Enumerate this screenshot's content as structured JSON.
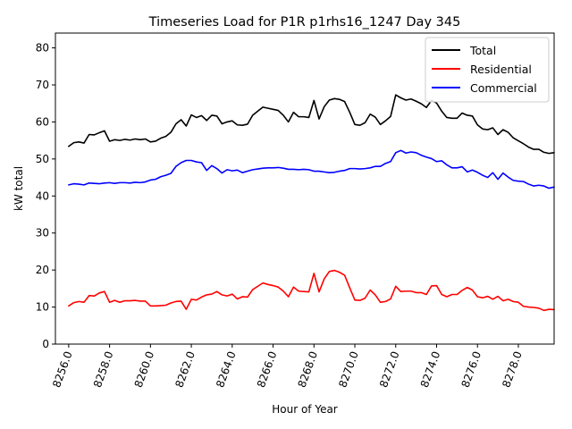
{
  "chart_data": {
    "type": "line",
    "title": "Timeseries Load for P1R p1rhs16_1247  Day 345",
    "xlabel": "Hour of Year",
    "ylabel": "kW total",
    "xlim": [
      8255.35,
      8279.75
    ],
    "ylim": [
      0,
      84
    ],
    "x_start": 8256.0,
    "x_step": 0.25,
    "xticks": [
      8256.0,
      8258.0,
      8260.0,
      8262.0,
      8264.0,
      8266.0,
      8268.0,
      8270.0,
      8272.0,
      8274.0,
      8276.0,
      8278.0
    ],
    "xtick_labels": [
      "8256.0",
      "8258.0",
      "8260.0",
      "8262.0",
      "8264.0",
      "8266.0",
      "8268.0",
      "8270.0",
      "8272.0",
      "8274.0",
      "8276.0",
      "8278.0"
    ],
    "yticks": [
      0,
      10,
      20,
      30,
      40,
      50,
      60,
      70,
      80
    ],
    "ytick_labels": [
      "0",
      "10",
      "20",
      "30",
      "40",
      "50",
      "60",
      "70",
      "80"
    ],
    "legend_position": "top-right",
    "series": [
      {
        "name": "Total",
        "color": "#000000",
        "values": [
          53.4,
          54.4,
          54.6,
          54.3,
          56.6,
          56.5,
          57.1,
          57.6,
          54.8,
          55.2,
          55.0,
          55.3,
          55.1,
          55.4,
          55.2,
          55.4,
          54.6,
          54.8,
          55.6,
          56.1,
          57.2,
          59.5,
          60.6,
          58.9,
          61.9,
          61.2,
          61.7,
          60.4,
          61.8,
          61.6,
          59.5,
          60.0,
          60.3,
          59.2,
          59.1,
          59.4,
          61.8,
          62.9,
          64.0,
          63.7,
          63.4,
          63.1,
          61.8,
          60.0,
          62.6,
          61.4,
          61.4,
          61.2,
          65.8,
          60.8,
          64.1,
          65.9,
          66.3,
          66.1,
          65.5,
          62.6,
          59.3,
          59.1,
          59.8,
          62.1,
          61.3,
          59.3,
          60.3,
          61.5,
          67.3,
          66.5,
          65.9,
          66.2,
          65.6,
          64.9,
          63.9,
          65.8,
          65.1,
          62.9,
          61.2,
          61.0,
          61.0,
          62.4,
          61.8,
          61.6,
          59.2,
          58.1,
          57.9,
          58.4,
          56.6,
          57.9,
          57.2,
          55.7,
          54.9,
          54.1,
          53.2,
          52.6,
          52.6,
          51.8,
          51.5,
          51.7
        ]
      },
      {
        "name": "Residential",
        "color": "#ff0000",
        "values": [
          10.3,
          11.2,
          11.5,
          11.3,
          13.1,
          13.0,
          13.8,
          14.2,
          11.3,
          11.8,
          11.3,
          11.7,
          11.7,
          11.8,
          11.6,
          11.6,
          10.3,
          10.3,
          10.4,
          10.5,
          11.1,
          11.5,
          11.6,
          9.4,
          12.1,
          11.9,
          12.7,
          13.3,
          13.5,
          14.2,
          13.3,
          13.0,
          13.5,
          12.2,
          12.8,
          12.7,
          14.7,
          15.6,
          16.5,
          16.1,
          15.8,
          15.4,
          14.3,
          12.8,
          15.4,
          14.3,
          14.2,
          14.1,
          19.1,
          14.1,
          17.6,
          19.6,
          19.9,
          19.4,
          18.6,
          15.2,
          11.9,
          11.8,
          12.4,
          14.6,
          13.3,
          11.3,
          11.5,
          12.2,
          15.6,
          14.2,
          14.3,
          14.3,
          13.9,
          13.9,
          13.4,
          15.7,
          15.8,
          13.4,
          12.8,
          13.4,
          13.4,
          14.5,
          15.3,
          14.6,
          12.8,
          12.5,
          12.9,
          12.1,
          12.9,
          11.7,
          12.1,
          11.5,
          11.3,
          10.2,
          10.0,
          9.9,
          9.7,
          9.1,
          9.4,
          9.3
        ]
      },
      {
        "name": "Commercial",
        "color": "#0000ff",
        "values": [
          43.0,
          43.3,
          43.2,
          43.0,
          43.5,
          43.4,
          43.3,
          43.5,
          43.6,
          43.4,
          43.6,
          43.6,
          43.5,
          43.7,
          43.6,
          43.8,
          44.3,
          44.5,
          45.2,
          45.6,
          46.1,
          48.0,
          49.0,
          49.6,
          49.6,
          49.2,
          49.0,
          46.9,
          48.2,
          47.4,
          46.2,
          47.1,
          46.8,
          47.0,
          46.3,
          46.7,
          47.1,
          47.3,
          47.5,
          47.6,
          47.6,
          47.7,
          47.5,
          47.2,
          47.2,
          47.1,
          47.2,
          47.1,
          46.7,
          46.7,
          46.5,
          46.3,
          46.4,
          46.7,
          46.9,
          47.4,
          47.4,
          47.3,
          47.4,
          47.6,
          48.0,
          48.0,
          48.8,
          49.3,
          51.7,
          52.3,
          51.6,
          51.9,
          51.7,
          51.0,
          50.5,
          50.1,
          49.3,
          49.5,
          48.4,
          47.6,
          47.6,
          47.9,
          46.5,
          47.0,
          46.4,
          45.6,
          45.0,
          46.3,
          44.5,
          46.2,
          45.1,
          44.2,
          44.0,
          43.9,
          43.2,
          42.7,
          42.9,
          42.7,
          42.1,
          42.4
        ]
      }
    ]
  }
}
